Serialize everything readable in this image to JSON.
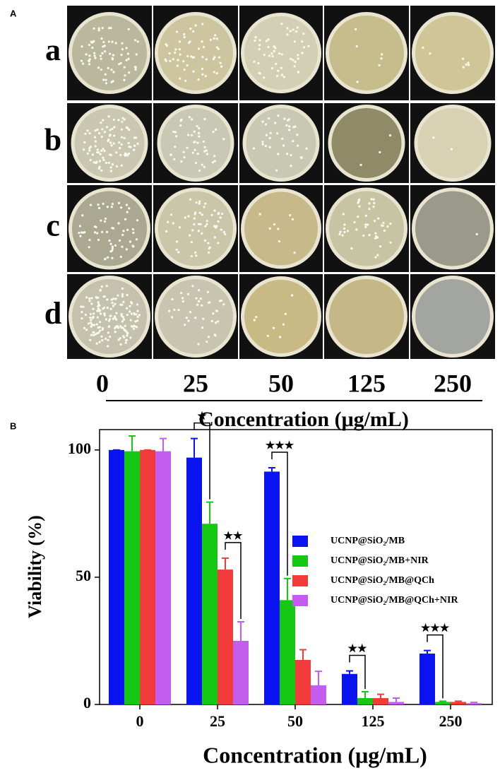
{
  "panel_a": {
    "label": "A",
    "rows": [
      "a",
      "b",
      "c",
      "d"
    ],
    "columns": [
      "0",
      "25",
      "50",
      "125",
      "250"
    ],
    "axis_title": "Concentration (μg/mL)"
  },
  "chart_data": {
    "type": "bar",
    "panel_label": "B",
    "x_label": "Concentration (μg/mL)",
    "y_label": "Viability (%)",
    "categories": [
      "0",
      "25",
      "50",
      "125",
      "250"
    ],
    "series": [
      {
        "name": "UCNP@SiO₂/MB",
        "color": "#0a14f0",
        "values": [
          100,
          97,
          91.5,
          12,
          20
        ],
        "errors": [
          0,
          7.5,
          1.5,
          1.2,
          1.2
        ]
      },
      {
        "name": "UCNP@SiO₂/MB+NIR",
        "color": "#14c814",
        "values": [
          99.5,
          71,
          41,
          2.5,
          1
        ],
        "errors": [
          6,
          8.5,
          8.5,
          2.5,
          0.3
        ]
      },
      {
        "name": "UCNP@SiO₂/MB@QCh",
        "color": "#f23c3c",
        "values": [
          100,
          53,
          17.5,
          2.5,
          1
        ],
        "errors": [
          0,
          4.5,
          4,
          1.5,
          0.3
        ]
      },
      {
        "name": "UCNP@SiO₂/MB@QCh+NIR",
        "color": "#c45cf0",
        "values": [
          99.5,
          25,
          7.5,
          1,
          0.5
        ],
        "errors": [
          5,
          7.5,
          5.5,
          1.5,
          0.3
        ]
      }
    ],
    "annotations": [
      "★",
      "★★",
      "★★★",
      "★★",
      "★★★"
    ],
    "ylim": [
      0,
      108
    ],
    "yticks": [
      0,
      50,
      100
    ],
    "legend": "upper right"
  }
}
